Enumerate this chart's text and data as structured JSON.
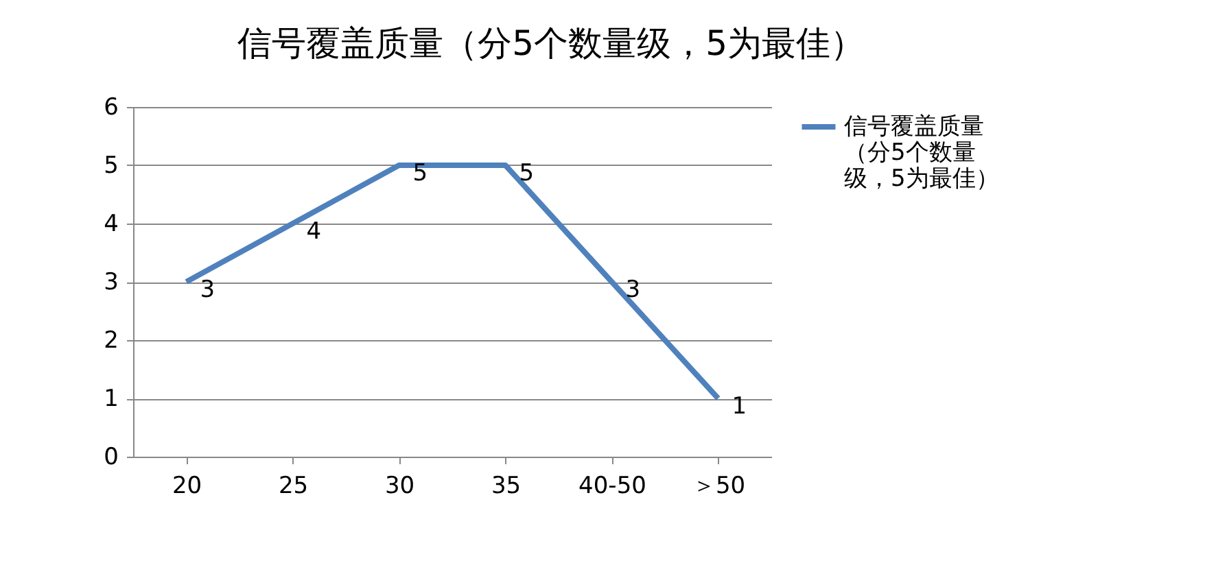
{
  "chart_data": {
    "type": "line",
    "title": "信号覆盖质量（分5个数量级，5为最佳）",
    "categories": [
      "20",
      "25",
      "30",
      "35",
      "40-50",
      "＞50"
    ],
    "series": [
      {
        "name": "信号覆盖质量（分5个数量级，5为最佳）",
        "color": "#4f81bd",
        "values": [
          3,
          4,
          5,
          5,
          3,
          1
        ]
      }
    ],
    "ylim": [
      0,
      6
    ],
    "yticks": [
      0,
      1,
      2,
      3,
      4,
      5,
      6
    ],
    "grid": "y",
    "legend": "right",
    "data_labels": true,
    "marker": "none",
    "line_style": "solid"
  }
}
